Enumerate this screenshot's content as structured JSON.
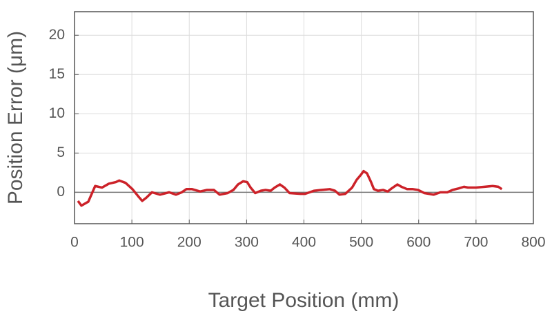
{
  "chart_data": {
    "type": "line",
    "xlabel": "Target Position (mm)",
    "ylabel": "Position Error (μm)",
    "xlim": [
      0,
      800
    ],
    "xticks": [
      0,
      100,
      200,
      300,
      400,
      500,
      600,
      700,
      800
    ],
    "ylim": [
      -4,
      23
    ],
    "yticks": [
      0,
      5,
      10,
      15,
      20
    ],
    "grid": true,
    "baseline": 0,
    "series": [
      {
        "color": "#cc2229",
        "x": [
          6,
          12,
          24,
          36,
          48,
          60,
          72,
          78,
          89,
          101,
          111,
          118,
          125,
          135,
          149,
          165,
          177,
          187,
          195,
          205,
          219,
          231,
          243,
          253,
          267,
          277,
          285,
          294,
          301,
          307,
          315,
          325,
          333,
          342,
          349,
          358,
          366,
          375,
          394,
          402,
          418,
          430,
          445,
          454,
          462,
          472,
          484,
          492,
          499,
          504,
          510,
          517,
          522,
          529,
          538,
          546,
          553,
          563,
          570,
          580,
          590,
          599,
          610,
          626,
          638,
          650,
          659,
          670,
          679,
          686,
          700,
          715,
          729,
          739,
          745
        ],
        "values": [
          -1.1,
          -1.7,
          -1.2,
          0.8,
          0.6,
          1.1,
          1.3,
          1.5,
          1.2,
          0.4,
          -0.5,
          -1.1,
          -0.7,
          0,
          -0.3,
          0,
          -0.3,
          0,
          0.4,
          0.4,
          0.1,
          0.3,
          0.3,
          -0.3,
          -0.1,
          0.3,
          1.0,
          1.4,
          1.3,
          0.6,
          -0.1,
          0.2,
          0.3,
          0.2,
          0.6,
          1.0,
          0.6,
          -0.1,
          -0.2,
          -0.2,
          0.2,
          0.3,
          0.4,
          0.2,
          -0.3,
          -0.2,
          0.6,
          1.6,
          2.2,
          2.7,
          2.4,
          1.3,
          0.4,
          0.2,
          0.3,
          0.1,
          0.5,
          1.0,
          0.7,
          0.4,
          0.4,
          0.3,
          -0.1,
          -0.3,
          0,
          0,
          0.3,
          0.5,
          0.7,
          0.6,
          0.6,
          0.7,
          0.8,
          0.7,
          0.4
        ]
      }
    ]
  }
}
